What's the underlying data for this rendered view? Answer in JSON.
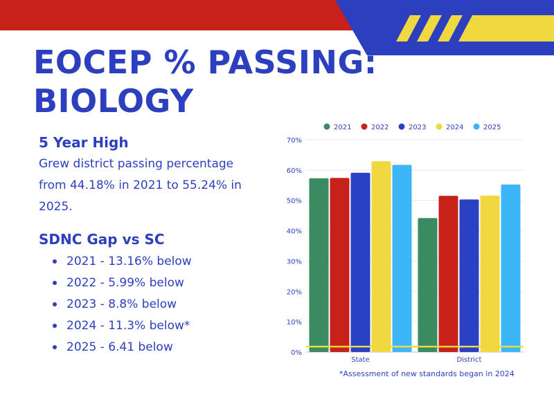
{
  "title": {
    "line1": "EOCEP % PASSING:",
    "line2": "BIOLOGY"
  },
  "highlight": {
    "heading": "5 Year High",
    "text": "Grew district passing percentage from 44.18% in 2021 to 55.24% in 2025."
  },
  "gap": {
    "heading": "SDNC Gap vs SC",
    "items": [
      "2021 - 13.16% below",
      "2022 - 5.99% below",
      "2023 - 8.8% below",
      "2024 - 11.3% below*",
      "2025 - 6.41 below"
    ]
  },
  "footnote": "*Assessment of new standards began in 2024",
  "colors": {
    "accent_red": "#c8211a",
    "accent_blue": "#2b3fbf",
    "accent_yellow": "#f0d840"
  },
  "chart_data": {
    "type": "bar",
    "categories": [
      "State",
      "District"
    ],
    "series": [
      {
        "name": "2021",
        "color": "#3a8a62",
        "values": [
          57.3,
          44.18
        ]
      },
      {
        "name": "2022",
        "color": "#c8211a",
        "values": [
          57.4,
          51.5
        ]
      },
      {
        "name": "2023",
        "color": "#2b41c4",
        "values": [
          59.1,
          50.3
        ]
      },
      {
        "name": "2024",
        "color": "#f0d840",
        "values": [
          62.9,
          51.6
        ]
      },
      {
        "name": "2025",
        "color": "#3db6f8",
        "values": [
          61.7,
          55.24
        ]
      }
    ],
    "ylim": [
      0,
      70
    ],
    "yticks": [
      0,
      10,
      20,
      30,
      40,
      50,
      60,
      70
    ],
    "ytick_labels": [
      "0%",
      "10%",
      "20%",
      "30%",
      "40%",
      "50%",
      "60%",
      "70%"
    ],
    "reference_line": 1.8,
    "legend": "top",
    "grid": true
  }
}
